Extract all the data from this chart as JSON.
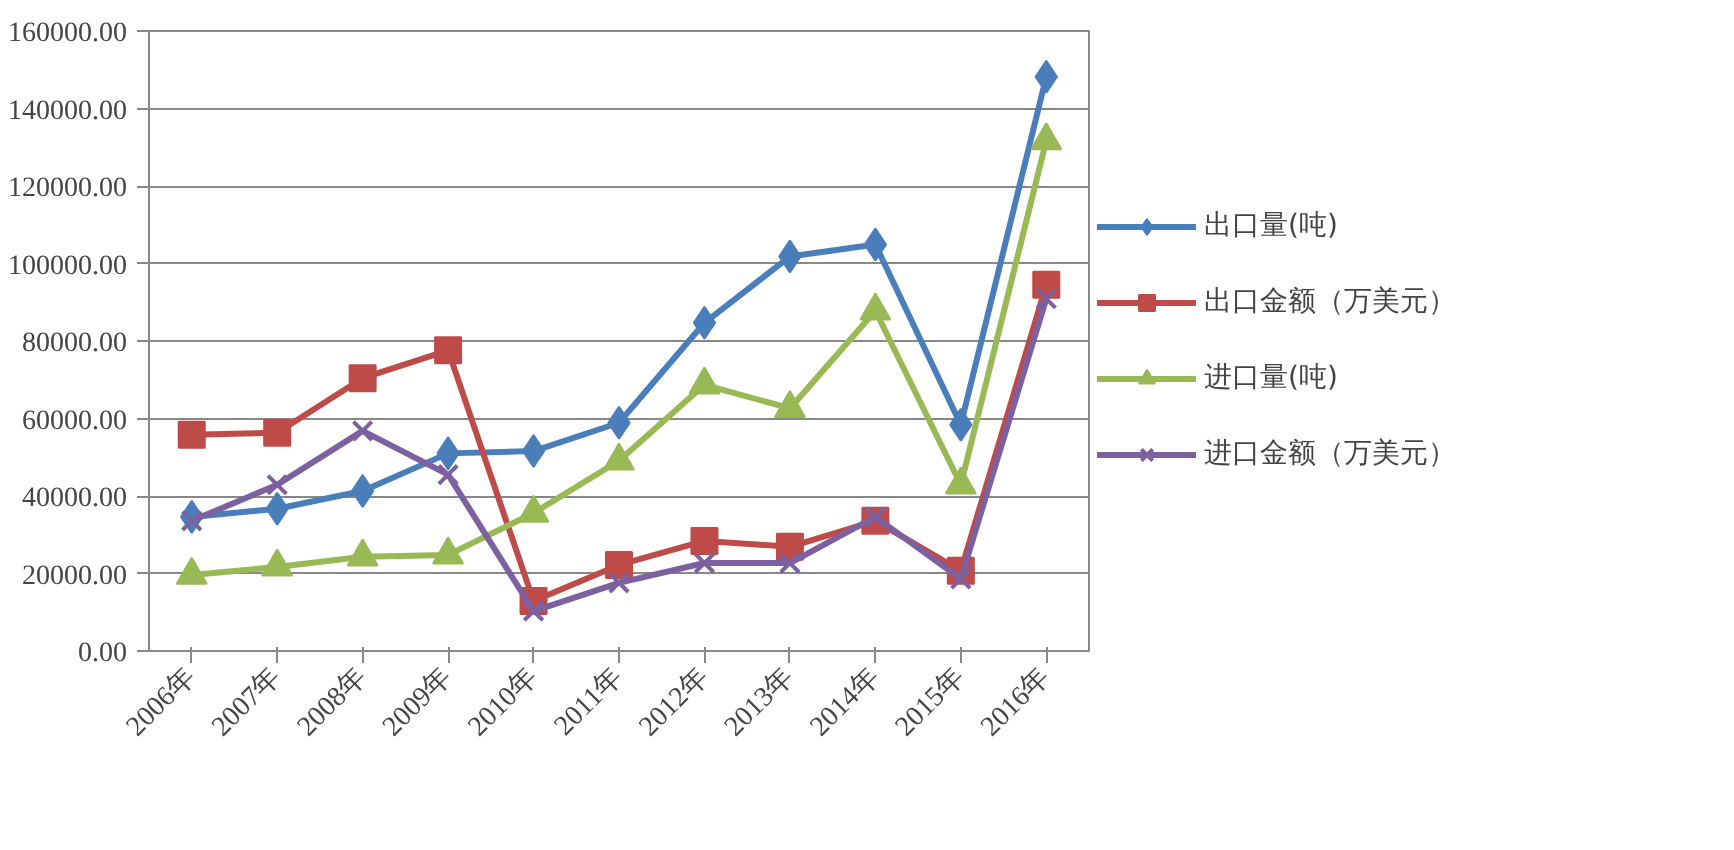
{
  "chart_data": {
    "type": "line",
    "categories": [
      "2006年",
      "2007年",
      "2008年",
      "2009年",
      "2010年",
      "2011年",
      "2012年",
      "2013年",
      "2014年",
      "2015年",
      "2016年"
    ],
    "series": [
      {
        "name": "出口量(吨)",
        "color": "#4a7ebb",
        "marker": "diamond",
        "values": [
          34600,
          36700,
          41300,
          51000,
          51600,
          58900,
          84700,
          101800,
          104900,
          58400,
          148200
        ]
      },
      {
        "name": "出口金额（万美元）",
        "color": "#be4b48",
        "marker": "square",
        "values": [
          55800,
          56300,
          70400,
          77600,
          12900,
          22200,
          28400,
          26900,
          33600,
          20700,
          94500
        ]
      },
      {
        "name": "进口量(吨)",
        "color": "#98b954",
        "marker": "triangle",
        "values": [
          19600,
          21700,
          24300,
          24800,
          35600,
          49100,
          68700,
          62600,
          87800,
          42900,
          131700
        ]
      },
      {
        "name": "进口金额（万美元）",
        "color": "#7d60a0",
        "marker": "cross",
        "values": [
          33600,
          42900,
          56800,
          45500,
          10300,
          17600,
          22700,
          22700,
          34600,
          18600,
          90900
        ]
      }
    ],
    "ylim": [
      0,
      160000
    ],
    "yticks": [
      {
        "value": 0,
        "label": "0.00"
      },
      {
        "value": 20000,
        "label": "20000.00"
      },
      {
        "value": 40000,
        "label": "40000.00"
      },
      {
        "value": 60000,
        "label": "60000.00"
      },
      {
        "value": 80000,
        "label": "80000.00"
      },
      {
        "value": 100000,
        "label": "100000.00"
      },
      {
        "value": 120000,
        "label": "120000.00"
      },
      {
        "value": 140000,
        "label": "140000.00"
      },
      {
        "value": 160000,
        "label": "160000.00"
      }
    ],
    "grid": "y",
    "legend": "right",
    "line_style": "solid"
  }
}
